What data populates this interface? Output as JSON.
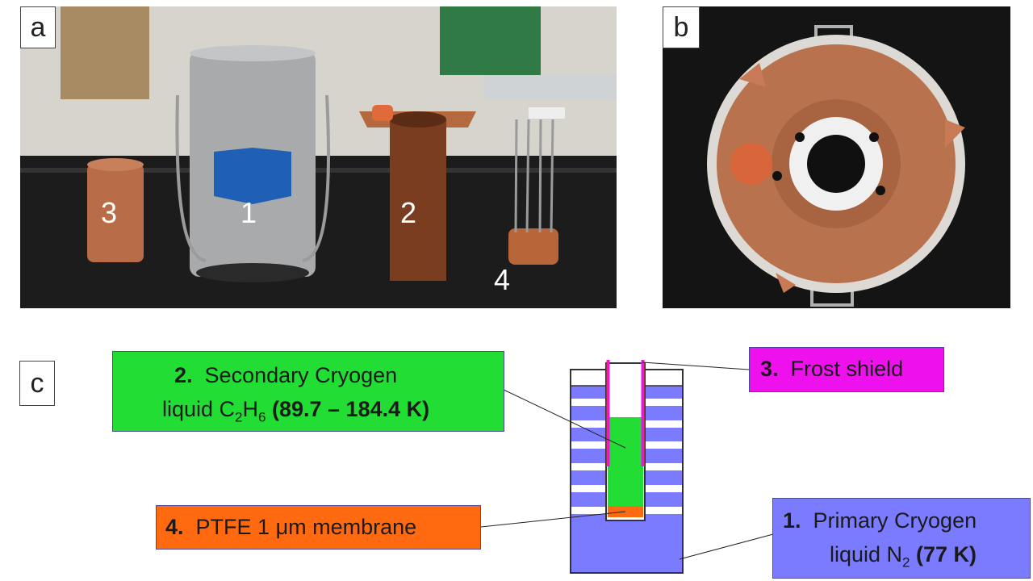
{
  "panels": {
    "a": "a",
    "b": "b",
    "c": "c"
  },
  "photo_a": {
    "numbers": [
      "3",
      "1",
      "2",
      "4"
    ]
  },
  "labels": {
    "secondary": {
      "num": "2.",
      "line1": "Secondary Cryogen",
      "line2_prefix": "liquid C",
      "sub1": "2",
      "mid": "H",
      "sub2": "6",
      "temp": "(89.7 – 184.4 K)"
    },
    "frost": {
      "num": "3.",
      "text": "Frost shield"
    },
    "ptfe": {
      "num": "4.",
      "text": "PTFE 1 μm membrane"
    },
    "primary": {
      "num": "1.",
      "line1": "Primary Cryogen",
      "line2_prefix": "liquid N",
      "sub": "2",
      "temp": "(77 K)"
    }
  },
  "colors": {
    "secondary": "#22dd33",
    "frost": "#ee11ee",
    "ptfe": "#ff6a10",
    "primary": "#7b7bff",
    "dewar_band": "#ffffff"
  }
}
